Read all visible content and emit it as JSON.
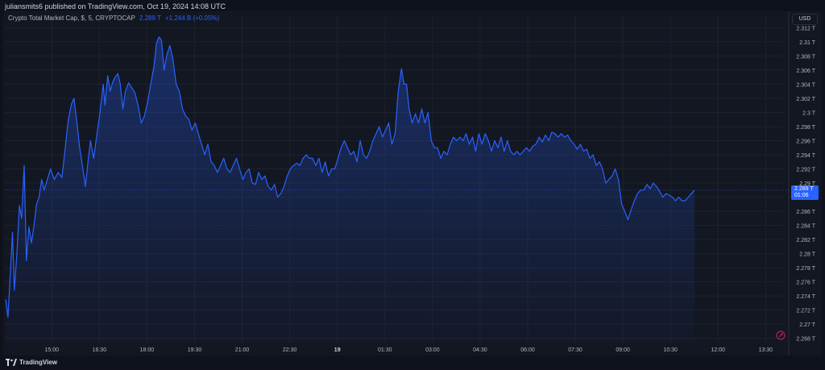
{
  "header": {
    "publisher_line": "juliansmits6 published on TradingView.com, Oct 19, 2024 14:08 UTC"
  },
  "legend": {
    "symbol": "Crypto Total Market Cap, $, 5, CRYPTOCAP",
    "last": "2.289 T",
    "change": "+1.244 B (+0.05%)"
  },
  "toolbar": {
    "currency": "USD"
  },
  "price_tag": {
    "value": "2.289 T",
    "countdown": "01:06"
  },
  "footer": {
    "brand": "TradingView"
  },
  "colors": {
    "line": "#2962ff",
    "area_top": "#2962ff",
    "grid": "#1e222d",
    "axis_text": "#b2b5be",
    "background": "#131722"
  },
  "icons": {
    "logo": "tradingview-logo-icon",
    "auto_scale": "auto-scale-icon"
  },
  "chart_data": {
    "type": "area",
    "x_tick_labels": [
      "15:00",
      "16:30",
      "18:00",
      "19:30",
      "21:00",
      "22:30",
      "19",
      "01:30",
      "03:00",
      "04:30",
      "06:00",
      "07:30",
      "09:00",
      "10:30",
      "12:00",
      "13:30"
    ],
    "y_tick_labels": [
      "2.312 T",
      "2.31 T",
      "2.308 T",
      "2.306 T",
      "2.304 T",
      "2.302 T",
      "2.3 T",
      "2.298 T",
      "2.296 T",
      "2.294 T",
      "2.292 T",
      "2.29 T",
      "2.288 T",
      "2.286 T",
      "2.284 T",
      "2.282 T",
      "2.28 T",
      "2.278 T",
      "2.276 T",
      "2.274 T",
      "2.272 T",
      "2.27 T",
      "2.268 T"
    ],
    "y_unit": "T",
    "ylim": [
      2.2674,
      2.3125
    ],
    "x_unit_note": "5-minute candles; x in hours since 15:00 Oct 18",
    "xlim": [
      -1.48,
      23.05
    ],
    "current_value": 2.289,
    "series": [
      {
        "name": "Crypto Total Market Cap",
        "points": [
          [
            -1.45,
            2.2735
          ],
          [
            -1.38,
            2.271
          ],
          [
            -1.3,
            2.2778
          ],
          [
            -1.24,
            2.283
          ],
          [
            -1.18,
            2.2748
          ],
          [
            -1.1,
            2.28
          ],
          [
            -1.02,
            2.2868
          ],
          [
            -0.95,
            2.285
          ],
          [
            -0.87,
            2.2925
          ],
          [
            -0.8,
            2.279
          ],
          [
            -0.72,
            2.2838
          ],
          [
            -0.64,
            2.2815
          ],
          [
            -0.56,
            2.284
          ],
          [
            -0.48,
            2.287
          ],
          [
            -0.4,
            2.288
          ],
          [
            -0.32,
            2.2905
          ],
          [
            -0.24,
            2.289
          ],
          [
            -0.14,
            2.2905
          ],
          [
            -0.04,
            2.292
          ],
          [
            0.08,
            2.2905
          ],
          [
            0.2,
            2.2915
          ],
          [
            0.32,
            2.2908
          ],
          [
            0.42,
            2.2948
          ],
          [
            0.52,
            2.299
          ],
          [
            0.62,
            2.3012
          ],
          [
            0.7,
            2.302
          ],
          [
            0.78,
            2.299
          ],
          [
            0.88,
            2.295
          ],
          [
            0.98,
            2.292
          ],
          [
            1.06,
            2.2895
          ],
          [
            1.14,
            2.293
          ],
          [
            1.22,
            2.296
          ],
          [
            1.32,
            2.2935
          ],
          [
            1.42,
            2.2968
          ],
          [
            1.52,
            2.3
          ],
          [
            1.62,
            2.304
          ],
          [
            1.68,
            2.301
          ],
          [
            1.76,
            2.3052
          ],
          [
            1.84,
            2.303
          ],
          [
            1.92,
            2.3043
          ],
          [
            2.0,
            2.305
          ],
          [
            2.08,
            2.3055
          ],
          [
            2.16,
            2.304
          ],
          [
            2.24,
            2.3005
          ],
          [
            2.32,
            2.303
          ],
          [
            2.42,
            2.3042
          ],
          [
            2.52,
            2.3035
          ],
          [
            2.62,
            2.3028
          ],
          [
            2.72,
            2.301
          ],
          [
            2.82,
            2.2985
          ],
          [
            2.92,
            2.2995
          ],
          [
            3.02,
            2.3015
          ],
          [
            3.12,
            2.304
          ],
          [
            3.22,
            2.3065
          ],
          [
            3.3,
            2.3098
          ],
          [
            3.38,
            2.3107
          ],
          [
            3.46,
            2.3102
          ],
          [
            3.54,
            2.306
          ],
          [
            3.62,
            2.308
          ],
          [
            3.72,
            2.3095
          ],
          [
            3.82,
            2.3075
          ],
          [
            3.92,
            2.304
          ],
          [
            4.02,
            2.303
          ],
          [
            4.12,
            2.3005
          ],
          [
            4.22,
            2.2995
          ],
          [
            4.32,
            2.299
          ],
          [
            4.42,
            2.2975
          ],
          [
            4.52,
            2.2985
          ],
          [
            4.62,
            2.297
          ],
          [
            4.72,
            2.2955
          ],
          [
            4.82,
            2.294
          ],
          [
            4.92,
            2.2955
          ],
          [
            5.02,
            2.293
          ],
          [
            5.12,
            2.2925
          ],
          [
            5.22,
            2.2915
          ],
          [
            5.32,
            2.2925
          ],
          [
            5.42,
            2.2935
          ],
          [
            5.52,
            2.292
          ],
          [
            5.62,
            2.2915
          ],
          [
            5.72,
            2.2925
          ],
          [
            5.82,
            2.2935
          ],
          [
            5.92,
            2.292
          ],
          [
            6.02,
            2.2905
          ],
          [
            6.12,
            2.2915
          ],
          [
            6.22,
            2.292
          ],
          [
            6.32,
            2.29
          ],
          [
            6.42,
            2.2898
          ],
          [
            6.52,
            2.2915
          ],
          [
            6.62,
            2.2905
          ],
          [
            6.72,
            2.291
          ],
          [
            6.82,
            2.2895
          ],
          [
            6.92,
            2.289
          ],
          [
            7.02,
            2.2898
          ],
          [
            7.12,
            2.288
          ],
          [
            7.22,
            2.2885
          ],
          [
            7.32,
            2.2895
          ],
          [
            7.42,
            2.291
          ],
          [
            7.52,
            2.292
          ],
          [
            7.62,
            2.2925
          ],
          [
            7.72,
            2.2928
          ],
          [
            7.82,
            2.2925
          ],
          [
            7.92,
            2.2935
          ],
          [
            8.02,
            2.294
          ],
          [
            8.12,
            2.2935
          ],
          [
            8.22,
            2.2935
          ],
          [
            8.32,
            2.2925
          ],
          [
            8.42,
            2.2935
          ],
          [
            8.52,
            2.2915
          ],
          [
            8.62,
            2.293
          ],
          [
            8.72,
            2.291
          ],
          [
            8.82,
            2.292
          ],
          [
            8.92,
            2.292
          ],
          [
            9.02,
            2.2935
          ],
          [
            9.12,
            2.295
          ],
          [
            9.22,
            2.296
          ],
          [
            9.32,
            2.295
          ],
          [
            9.42,
            2.294
          ],
          [
            9.52,
            2.2945
          ],
          [
            9.62,
            2.293
          ],
          [
            9.72,
            2.296
          ],
          [
            9.82,
            2.294
          ],
          [
            9.92,
            2.2935
          ],
          [
            10.02,
            2.2945
          ],
          [
            10.12,
            2.296
          ],
          [
            10.22,
            2.297
          ],
          [
            10.32,
            2.298
          ],
          [
            10.42,
            2.2965
          ],
          [
            10.52,
            2.2975
          ],
          [
            10.62,
            2.2985
          ],
          [
            10.72,
            2.2955
          ],
          [
            10.82,
            2.297
          ],
          [
            10.92,
            2.303
          ],
          [
            11.02,
            2.3062
          ],
          [
            11.1,
            2.304
          ],
          [
            11.18,
            2.304
          ],
          [
            11.26,
            2.3005
          ],
          [
            11.36,
            2.2985
          ],
          [
            11.46,
            2.2998
          ],
          [
            11.56,
            2.2985
          ],
          [
            11.66,
            2.3005
          ],
          [
            11.76,
            2.2985
          ],
          [
            11.86,
            2.3
          ],
          [
            11.96,
            2.296
          ],
          [
            12.06,
            2.295
          ],
          [
            12.16,
            2.295
          ],
          [
            12.26,
            2.2935
          ],
          [
            12.36,
            2.2945
          ],
          [
            12.46,
            2.294
          ],
          [
            12.56,
            2.2955
          ],
          [
            12.66,
            2.2965
          ],
          [
            12.76,
            2.296
          ],
          [
            12.86,
            2.2965
          ],
          [
            12.96,
            2.296
          ],
          [
            13.06,
            2.297
          ],
          [
            13.16,
            2.2955
          ],
          [
            13.26,
            2.2965
          ],
          [
            13.36,
            2.2945
          ],
          [
            13.46,
            2.297
          ],
          [
            13.56,
            2.2955
          ],
          [
            13.66,
            2.297
          ],
          [
            13.76,
            2.296
          ],
          [
            13.86,
            2.2945
          ],
          [
            13.96,
            2.296
          ],
          [
            14.06,
            2.295
          ],
          [
            14.16,
            2.2965
          ],
          [
            14.26,
            2.2945
          ],
          [
            14.36,
            2.296
          ],
          [
            14.46,
            2.2945
          ],
          [
            14.56,
            2.294
          ],
          [
            14.66,
            2.2945
          ],
          [
            14.76,
            2.294
          ],
          [
            14.86,
            2.2945
          ],
          [
            14.96,
            2.295
          ],
          [
            15.06,
            2.2945
          ],
          [
            15.16,
            2.2952
          ],
          [
            15.26,
            2.2955
          ],
          [
            15.36,
            2.2965
          ],
          [
            15.46,
            2.2958
          ],
          [
            15.56,
            2.2968
          ],
          [
            15.66,
            2.296
          ],
          [
            15.76,
            2.2972
          ],
          [
            15.86,
            2.297
          ],
          [
            15.96,
            2.2965
          ],
          [
            16.06,
            2.297
          ],
          [
            16.16,
            2.2965
          ],
          [
            16.26,
            2.2968
          ],
          [
            16.36,
            2.296
          ],
          [
            16.46,
            2.2955
          ],
          [
            16.56,
            2.2948
          ],
          [
            16.66,
            2.2955
          ],
          [
            16.76,
            2.2945
          ],
          [
            16.86,
            2.2948
          ],
          [
            16.96,
            2.2935
          ],
          [
            17.06,
            2.294
          ],
          [
            17.16,
            2.2925
          ],
          [
            17.26,
            2.293
          ],
          [
            17.36,
            2.292
          ],
          [
            17.46,
            2.29
          ],
          [
            17.56,
            2.2905
          ],
          [
            17.66,
            2.291
          ],
          [
            17.76,
            2.292
          ],
          [
            17.86,
            2.2905
          ],
          [
            17.96,
            2.287
          ],
          [
            18.06,
            2.286
          ],
          [
            18.16,
            2.2848
          ],
          [
            18.26,
            2.2862
          ],
          [
            18.36,
            2.2875
          ],
          [
            18.46,
            2.2885
          ],
          [
            18.56,
            2.289
          ],
          [
            18.66,
            2.289
          ],
          [
            18.76,
            2.2898
          ],
          [
            18.86,
            2.2892
          ],
          [
            18.96,
            2.29
          ],
          [
            19.06,
            2.2895
          ],
          [
            19.16,
            2.2888
          ],
          [
            19.26,
            2.288
          ],
          [
            19.36,
            2.2885
          ],
          [
            19.46,
            2.2883
          ],
          [
            19.56,
            2.288
          ],
          [
            19.66,
            2.2875
          ],
          [
            19.76,
            2.288
          ],
          [
            19.86,
            2.2875
          ],
          [
            19.96,
            2.2875
          ],
          [
            20.06,
            2.288
          ],
          [
            20.16,
            2.2885
          ],
          [
            20.26,
            2.289
          ]
        ]
      }
    ],
    "grid": true
  }
}
